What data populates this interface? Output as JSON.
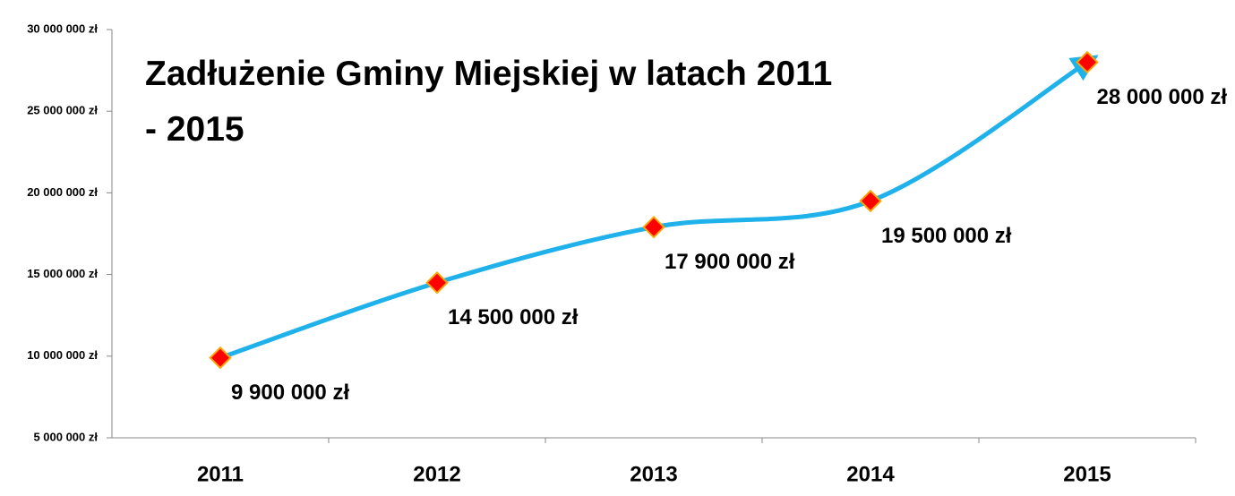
{
  "chart_data": {
    "type": "line",
    "title": "Zadłużenie Gminy Miejskiej w latach 2011 - 2015",
    "categories": [
      "2011",
      "2012",
      "2013",
      "2014",
      "2015"
    ],
    "series": [
      {
        "name": "Zadłużenie",
        "color": "#1fb1ea",
        "values": [
          9900000,
          14500000,
          17900000,
          19500000,
          28000000
        ],
        "value_labels": [
          "9 900 000 zł",
          "14 500 000 zł",
          "17 900 000 zł",
          "19 500 000 zł",
          "28 000 000 zł"
        ]
      }
    ],
    "marker_color": "#ff0000",
    "ylim": [
      5000000,
      30000000
    ],
    "yticks": [
      {
        "value": 5000000,
        "label": "5 000 000 zł"
      },
      {
        "value": 10000000,
        "label": "10 000 000 zł"
      },
      {
        "value": 15000000,
        "label": "15 000 000 zł"
      },
      {
        "value": 20000000,
        "label": "20 000 000 zł"
      },
      {
        "value": 25000000,
        "label": "25 000 000 zł"
      },
      {
        "value": 30000000,
        "label": "30 000 000 zł"
      }
    ],
    "grid": false
  }
}
